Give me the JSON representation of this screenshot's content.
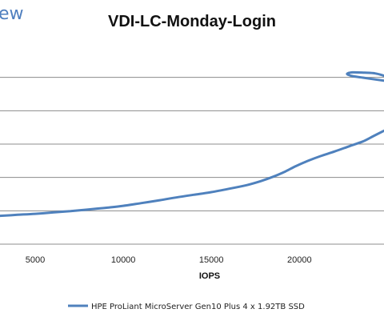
{
  "brand": {
    "logo_fragment": "ew"
  },
  "chart_data": {
    "type": "line",
    "title": "VDI-LC-Monday-Login",
    "xlabel": "IOPS",
    "ylabel": "",
    "xlim": [
      3000,
      24800
    ],
    "ylim": [
      0,
      6
    ],
    "x_ticks": [
      5000,
      10000,
      15000,
      20000
    ],
    "y_gridlines": [
      1,
      2,
      3,
      4,
      5
    ],
    "grid": true,
    "legend_position": "bottom",
    "series": [
      {
        "name": "HPE ProLiant MicroServer Gen10 Plus 4 x 1.92TB SSD",
        "color": "#4f81bd",
        "x": [
          3000,
          4000,
          5000,
          6000,
          7000,
          8000,
          9000,
          10000,
          11000,
          12000,
          13000,
          14000,
          15000,
          16000,
          17000,
          17800,
          18500,
          19200,
          19800,
          20500,
          21200,
          22000,
          22800,
          23600,
          24200,
          24800
        ],
        "y": [
          0.85,
          0.88,
          0.91,
          0.95,
          0.99,
          1.04,
          1.09,
          1.15,
          1.23,
          1.31,
          1.4,
          1.48,
          1.56,
          1.66,
          1.77,
          1.89,
          2.02,
          2.18,
          2.34,
          2.5,
          2.64,
          2.78,
          2.93,
          3.08,
          3.24,
          3.4
        ]
      }
    ],
    "hook": {
      "x": [
        24800,
        24300,
        23700,
        23000,
        22700,
        23000,
        23500,
        24000,
        24800
      ],
      "y": [
        5.05,
        5.12,
        5.14,
        5.15,
        5.1,
        5.04,
        5.0,
        4.96,
        4.9
      ]
    }
  }
}
